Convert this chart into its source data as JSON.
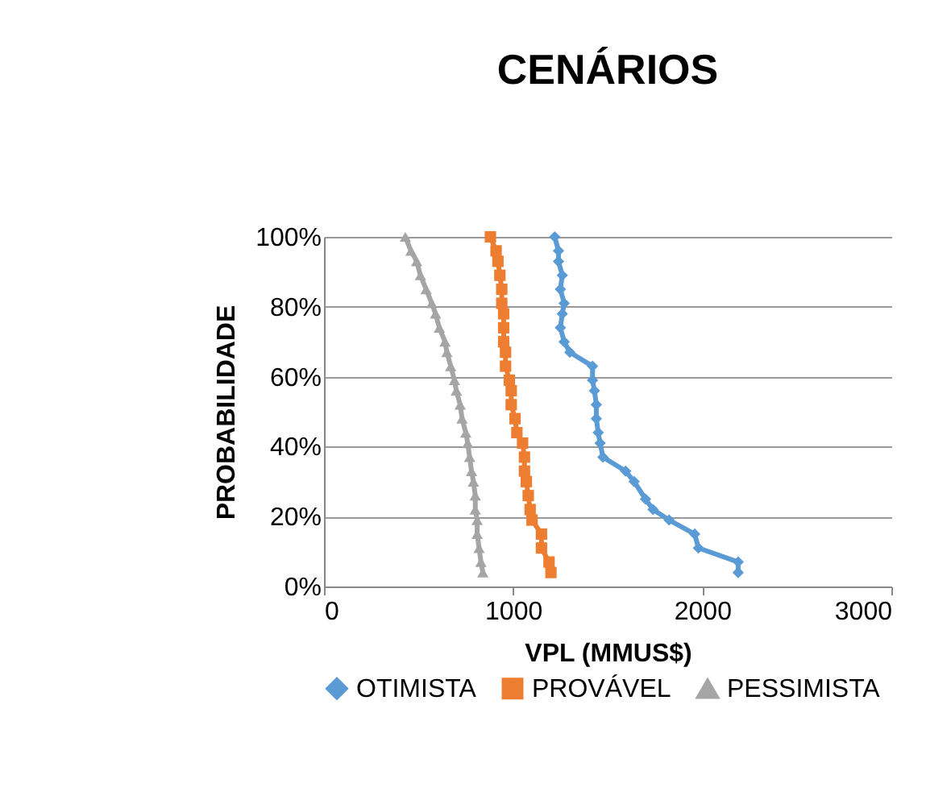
{
  "chart_data": {
    "type": "line",
    "title": "CENÁRIOS",
    "xlabel": "VPL (MMUS$)",
    "ylabel": "PROBABILIDADE",
    "xlim": [
      0,
      3000
    ],
    "xticks": [
      0,
      1000,
      2000,
      3000
    ],
    "ylim": [
      0,
      100
    ],
    "yticks": [
      {
        "value": 0,
        "label": "0%"
      },
      {
        "value": 20,
        "label": "20%"
      },
      {
        "value": 40,
        "label": "40%"
      },
      {
        "value": 60,
        "label": "60%"
      },
      {
        "value": 80,
        "label": "80%"
      },
      {
        "value": 100,
        "label": "100%"
      }
    ],
    "grid": "y",
    "legend": "bottom",
    "line_style": "solid",
    "series": [
      {
        "name": "OTIMISTA",
        "color": "#5b9bd5",
        "marker": "diamond",
        "x": [
          2190,
          2190,
          1980,
          1960,
          1825,
          1740,
          1700,
          1640,
          1595,
          1475,
          1460,
          1450,
          1440,
          1440,
          1430,
          1420,
          1420,
          1300,
          1270,
          1250,
          1260,
          1270,
          1250,
          1260,
          1240,
          1240,
          1220
        ],
        "values": [
          4,
          7,
          11,
          15,
          19,
          22,
          25,
          30,
          33,
          37,
          41,
          44,
          48,
          52,
          56,
          59,
          63,
          67,
          70,
          74,
          78,
          81,
          85,
          89,
          93,
          96,
          100
        ]
      },
      {
        "name": "PROVÁVEL",
        "color": "#ed7d31",
        "marker": "square",
        "x": [
          1200,
          1190,
          1150,
          1150,
          1100,
          1090,
          1080,
          1070,
          1060,
          1060,
          1050,
          1020,
          1010,
          990,
          990,
          980,
          960,
          960,
          950,
          950,
          950,
          940,
          940,
          930,
          920,
          910,
          880
        ],
        "values": [
          4,
          7,
          11,
          15,
          19,
          22,
          26,
          30,
          33,
          37,
          41,
          44,
          48,
          52,
          56,
          59,
          63,
          67,
          70,
          74,
          78,
          81,
          85,
          89,
          93,
          96,
          100
        ]
      },
      {
        "name": "PESSIMISTA",
        "color": "#a5a5a5",
        "marker": "triangle",
        "x": [
          840,
          830,
          820,
          810,
          810,
          800,
          800,
          790,
          780,
          770,
          760,
          750,
          730,
          720,
          700,
          690,
          670,
          650,
          640,
          610,
          590,
          570,
          540,
          510,
          490,
          460,
          430
        ],
        "values": [
          4,
          7,
          11,
          15,
          19,
          22,
          26,
          30,
          33,
          37,
          41,
          44,
          48,
          52,
          56,
          59,
          63,
          67,
          70,
          74,
          78,
          81,
          85,
          89,
          93,
          96,
          100
        ]
      }
    ]
  }
}
